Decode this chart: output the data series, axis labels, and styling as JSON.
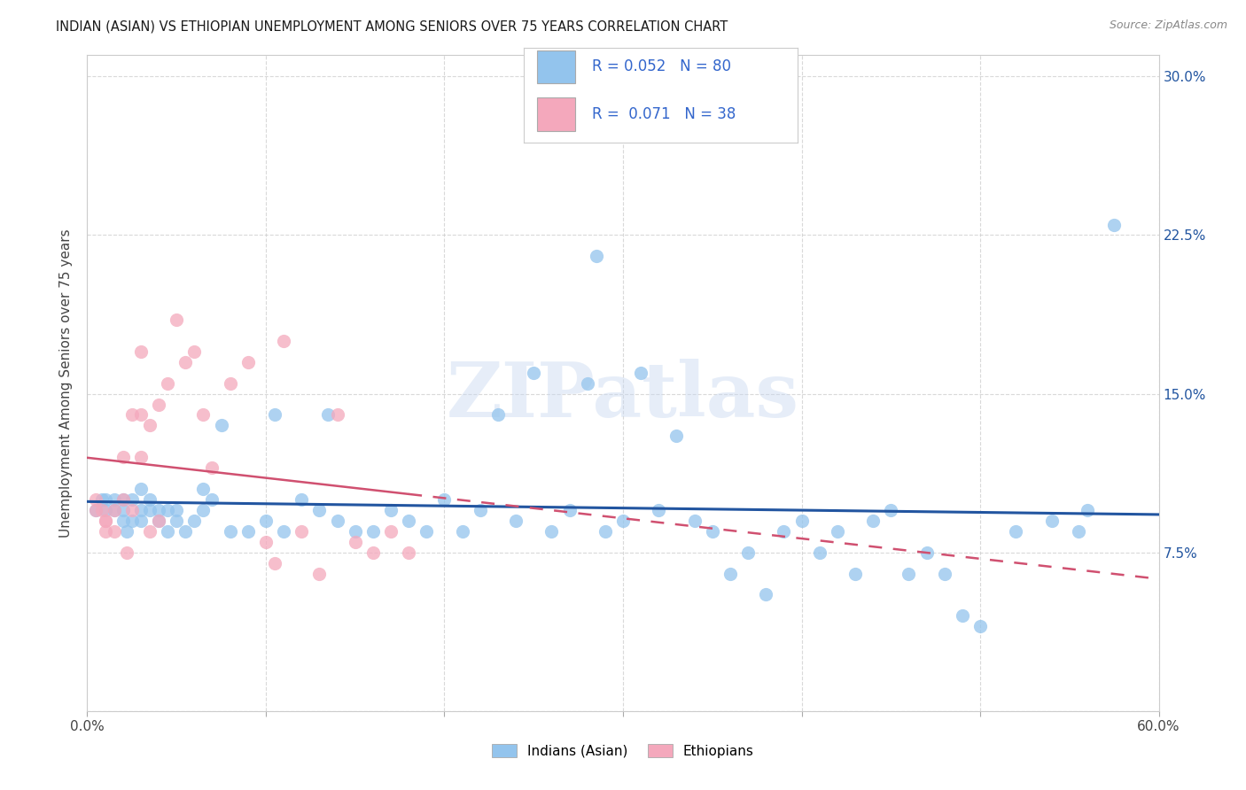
{
  "title": "INDIAN (ASIAN) VS ETHIOPIAN UNEMPLOYMENT AMONG SENIORS OVER 75 YEARS CORRELATION CHART",
  "source": "Source: ZipAtlas.com",
  "ylabel": "Unemployment Among Seniors over 75 years",
  "xlim": [
    0.0,
    0.6
  ],
  "ylim": [
    0.0,
    0.31
  ],
  "xticks": [
    0.0,
    0.1,
    0.2,
    0.3,
    0.4,
    0.5,
    0.6
  ],
  "xticklabels": [
    "0.0%",
    "",
    "",
    "",
    "",
    "",
    "60.0%"
  ],
  "yticks": [
    0.0,
    0.075,
    0.15,
    0.225,
    0.3
  ],
  "yticklabels_right": [
    "",
    "7.5%",
    "15.0%",
    "22.5%",
    "30.0%"
  ],
  "indian_color": "#93c4ed",
  "ethiopian_color": "#f4a8bc",
  "indian_line_color": "#2255a0",
  "ethiopian_line_color": "#d05070",
  "legend_color": "#3366cc",
  "indian_R": 0.052,
  "indian_N": 80,
  "ethiopian_R": 0.071,
  "ethiopian_N": 38,
  "indian_x": [
    0.005,
    0.008,
    0.01,
    0.01,
    0.015,
    0.015,
    0.02,
    0.02,
    0.02,
    0.022,
    0.025,
    0.025,
    0.03,
    0.03,
    0.03,
    0.035,
    0.035,
    0.04,
    0.04,
    0.045,
    0.045,
    0.05,
    0.05,
    0.055,
    0.06,
    0.065,
    0.065,
    0.07,
    0.075,
    0.08,
    0.09,
    0.1,
    0.105,
    0.11,
    0.12,
    0.13,
    0.135,
    0.14,
    0.15,
    0.16,
    0.17,
    0.18,
    0.19,
    0.2,
    0.21,
    0.22,
    0.23,
    0.24,
    0.25,
    0.26,
    0.27,
    0.28,
    0.285,
    0.29,
    0.3,
    0.31,
    0.32,
    0.33,
    0.34,
    0.35,
    0.36,
    0.37,
    0.38,
    0.39,
    0.4,
    0.41,
    0.42,
    0.43,
    0.44,
    0.45,
    0.46,
    0.47,
    0.48,
    0.49,
    0.5,
    0.52,
    0.54,
    0.555,
    0.56,
    0.575
  ],
  "indian_y": [
    0.095,
    0.1,
    0.095,
    0.1,
    0.095,
    0.1,
    0.09,
    0.095,
    0.1,
    0.085,
    0.09,
    0.1,
    0.09,
    0.095,
    0.105,
    0.095,
    0.1,
    0.09,
    0.095,
    0.085,
    0.095,
    0.09,
    0.095,
    0.085,
    0.09,
    0.095,
    0.105,
    0.1,
    0.135,
    0.085,
    0.085,
    0.09,
    0.14,
    0.085,
    0.1,
    0.095,
    0.14,
    0.09,
    0.085,
    0.085,
    0.095,
    0.09,
    0.085,
    0.1,
    0.085,
    0.095,
    0.14,
    0.09,
    0.16,
    0.085,
    0.095,
    0.155,
    0.215,
    0.085,
    0.09,
    0.16,
    0.095,
    0.13,
    0.09,
    0.085,
    0.065,
    0.075,
    0.055,
    0.085,
    0.09,
    0.075,
    0.085,
    0.065,
    0.09,
    0.095,
    0.065,
    0.075,
    0.065,
    0.045,
    0.04,
    0.085,
    0.09,
    0.085,
    0.095,
    0.23
  ],
  "ethiopian_x": [
    0.005,
    0.005,
    0.008,
    0.01,
    0.01,
    0.01,
    0.015,
    0.015,
    0.02,
    0.02,
    0.022,
    0.025,
    0.025,
    0.03,
    0.03,
    0.03,
    0.035,
    0.035,
    0.04,
    0.04,
    0.045,
    0.05,
    0.055,
    0.06,
    0.065,
    0.07,
    0.08,
    0.09,
    0.1,
    0.105,
    0.11,
    0.12,
    0.13,
    0.14,
    0.15,
    0.16,
    0.17,
    0.18
  ],
  "ethiopian_y": [
    0.1,
    0.095,
    0.095,
    0.09,
    0.09,
    0.085,
    0.085,
    0.095,
    0.12,
    0.1,
    0.075,
    0.095,
    0.14,
    0.12,
    0.17,
    0.14,
    0.135,
    0.085,
    0.09,
    0.145,
    0.155,
    0.185,
    0.165,
    0.17,
    0.14,
    0.115,
    0.155,
    0.165,
    0.08,
    0.07,
    0.175,
    0.085,
    0.065,
    0.14,
    0.08,
    0.075,
    0.085,
    0.075
  ],
  "watermark": "ZIPatlas",
  "background_color": "#ffffff",
  "grid_color": "#d0d0d0"
}
